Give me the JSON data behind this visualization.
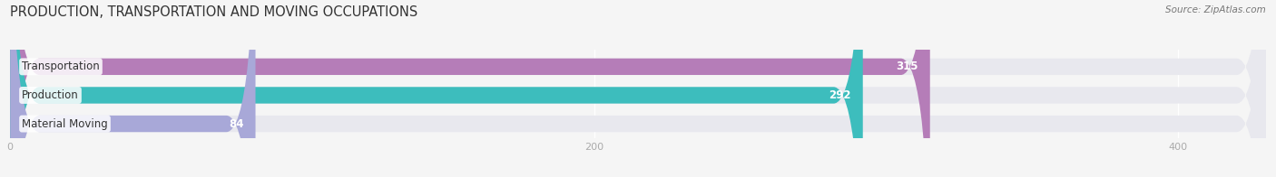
{
  "title": "PRODUCTION, TRANSPORTATION AND MOVING OCCUPATIONS",
  "source_text": "Source: ZipAtlas.com",
  "categories": [
    "Transportation",
    "Production",
    "Material Moving"
  ],
  "values": [
    315,
    292,
    84
  ],
  "bar_colors": [
    "#b57db8",
    "#3dbdbd",
    "#a8a8d8"
  ],
  "background_color": "#f5f5f5",
  "bar_bg_color": "#e8e8ee",
  "title_fontsize": 10.5,
  "label_fontsize": 8.5,
  "value_fontsize": 8.5,
  "source_fontsize": 7.5,
  "bar_height": 0.58,
  "xlim_max": 430,
  "xticks": [
    0,
    200,
    400
  ],
  "figsize": [
    14.06,
    1.96
  ],
  "dpi": 100
}
